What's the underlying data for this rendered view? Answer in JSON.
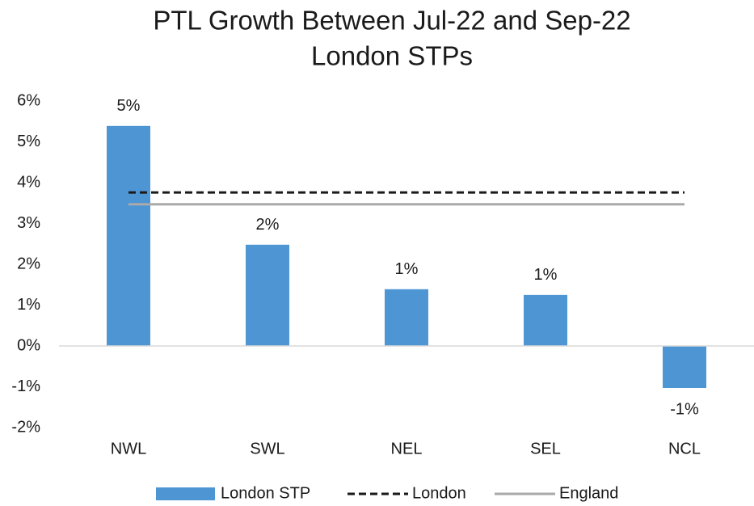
{
  "chart_data": {
    "type": "bar",
    "title": "PTL Growth Between Jul-22 and Sep-22",
    "subtitle": "London STPs",
    "categories": [
      "NWL",
      "SWL",
      "NEL",
      "SEL",
      "NCL"
    ],
    "series": [
      {
        "name": "London STP",
        "type": "bar",
        "color": "#4e95d4",
        "values": [
          5.39,
          2.48,
          1.39,
          1.25,
          -1.03
        ],
        "value_labels": [
          "5%",
          "2%",
          "1%",
          "1%",
          "-1%"
        ]
      },
      {
        "name": "London",
        "type": "line",
        "color": "#1a1a1a",
        "dashed": true,
        "values": [
          3.76,
          3.76,
          3.76,
          3.76,
          3.76
        ]
      },
      {
        "name": "England",
        "type": "line",
        "color": "#aaaaaa",
        "dashed": false,
        "values": [
          3.47,
          3.47,
          3.47,
          3.47,
          3.47
        ]
      }
    ],
    "ylim": [
      -2,
      6
    ],
    "yticks": [
      {
        "value": -2,
        "label": "-2%"
      },
      {
        "value": -1,
        "label": "-1%"
      },
      {
        "value": 0,
        "label": "0%"
      },
      {
        "value": 1,
        "label": "1%"
      },
      {
        "value": 2,
        "label": "2%"
      },
      {
        "value": 3,
        "label": "3%"
      },
      {
        "value": 4,
        "label": "4%"
      },
      {
        "value": 5,
        "label": "5%"
      },
      {
        "value": 6,
        "label": "6%"
      }
    ],
    "grid": false,
    "legend": "bottom"
  }
}
